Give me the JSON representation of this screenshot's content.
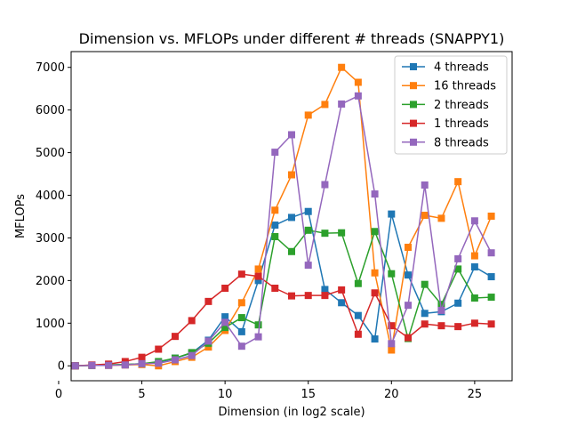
{
  "chart_data": {
    "type": "line",
    "title": "Dimension vs. MFLOPs under different # threads (SNAPPY1)",
    "xlabel": "Dimension (in log2 scale)",
    "ylabel": "MFLOPs",
    "xlim": [
      0.75,
      27.25
    ],
    "ylim": [
      -350,
      7370
    ],
    "xticks": [
      0,
      5,
      10,
      15,
      20,
      25
    ],
    "yticks": [
      0,
      1000,
      2000,
      3000,
      4000,
      5000,
      6000,
      7000
    ],
    "grid": false,
    "legend_position": "top-right",
    "marker": "square",
    "x": [
      1,
      2,
      3,
      4,
      5,
      6,
      7,
      8,
      9,
      10,
      11,
      12,
      13,
      14,
      15,
      16,
      17,
      18,
      19,
      20,
      21,
      22,
      23,
      24,
      25,
      26
    ],
    "series": [
      {
        "name": "4 threads",
        "color": "#1f77b4",
        "values": [
          0,
          10,
          20,
          30,
          50,
          80,
          180,
          300,
          600,
          1150,
          800,
          2000,
          3300,
          3480,
          3620,
          1790,
          1480,
          1180,
          630,
          3560,
          2130,
          1230,
          1270,
          1470,
          2320,
          2090
        ]
      },
      {
        "name": "16 threads",
        "color": "#ff7f0e",
        "values": [
          0,
          10,
          10,
          20,
          30,
          0,
          100,
          200,
          440,
          830,
          1480,
          2270,
          3650,
          4480,
          5880,
          6130,
          7000,
          6650,
          2180,
          370,
          2780,
          3530,
          3460,
          4320,
          2580,
          3510
        ]
      },
      {
        "name": "2 threads",
        "color": "#2ca02c",
        "values": [
          0,
          10,
          20,
          30,
          50,
          100,
          180,
          310,
          530,
          900,
          1130,
          960,
          3030,
          2680,
          3180,
          3110,
          3120,
          1930,
          3150,
          2160,
          640,
          1910,
          1440,
          2270,
          1590,
          1610
        ]
      },
      {
        "name": "1 threads",
        "color": "#d62728",
        "values": [
          0,
          20,
          40,
          100,
          200,
          390,
          690,
          1060,
          1510,
          1820,
          2150,
          2100,
          1820,
          1640,
          1650,
          1650,
          1780,
          740,
          1710,
          940,
          660,
          980,
          940,
          920,
          1000,
          980
        ]
      },
      {
        "name": "8 threads",
        "color": "#9467bd",
        "values": [
          0,
          10,
          10,
          20,
          50,
          60,
          140,
          240,
          580,
          1020,
          460,
          680,
          5010,
          5420,
          2360,
          4250,
          6140,
          6330,
          4030,
          520,
          1420,
          4240,
          1300,
          2510,
          3400,
          2650
        ]
      }
    ]
  }
}
